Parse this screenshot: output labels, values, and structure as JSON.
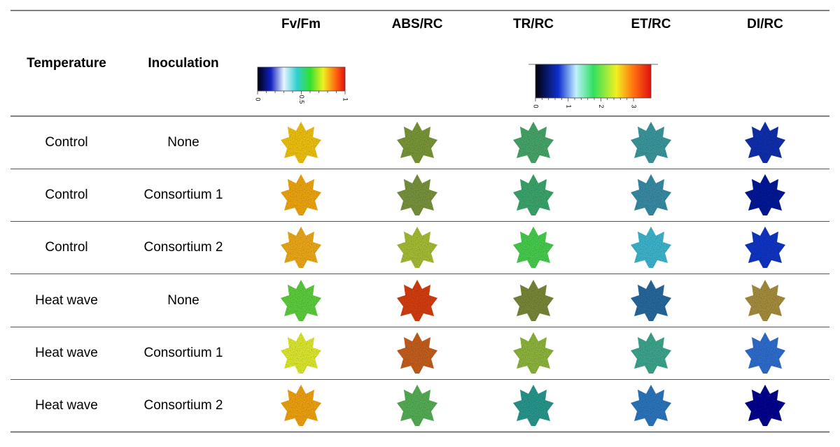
{
  "header": {
    "temperature": "Temperature",
    "inoculation": "Inoculation",
    "parameters": [
      "Fv/Fm",
      "ABS/RC",
      "TR/RC",
      "ET/RC",
      "DI/RC"
    ]
  },
  "scale_fvfm": {
    "ticks": [
      "0",
      "0.5",
      "1"
    ]
  },
  "scale_rc": {
    "ticks": [
      "0",
      "1",
      "2",
      "3"
    ]
  },
  "table": {
    "rows": [
      [
        "Control",
        "None"
      ],
      [
        "Control",
        "Consortium 1"
      ],
      [
        "Control",
        "Consortium 2"
      ],
      [
        "Heat wave",
        "None"
      ],
      [
        "Heat wave",
        "Consortium 1"
      ],
      [
        "Heat wave",
        "Consortium 2"
      ]
    ]
  }
}
